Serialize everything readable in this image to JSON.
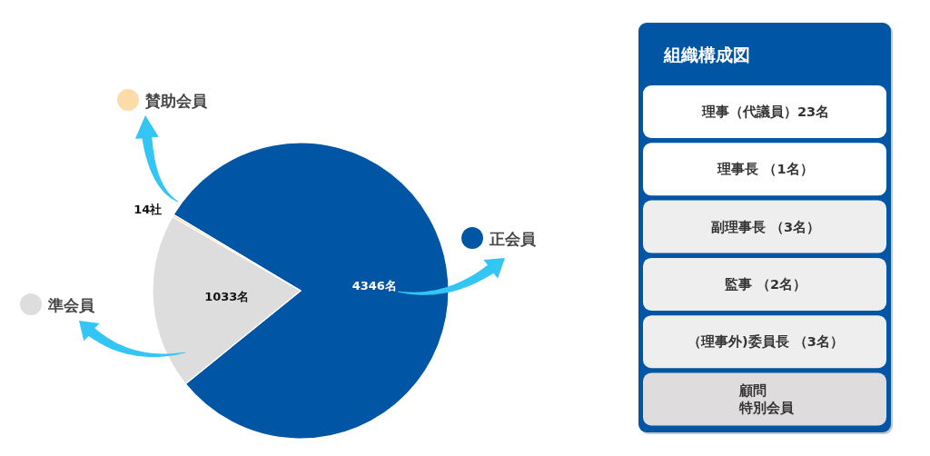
{
  "chart_data": [
    {
      "type": "pie",
      "categories": [
        "正会員",
        "準会員",
        "賛助会員"
      ],
      "values": [
        4346,
        1033,
        14
      ],
      "colors": [
        "#0055a5",
        "#dddddd",
        "#fddcaa"
      ],
      "value_labels": [
        "4346名",
        "1033名",
        "14社"
      ],
      "legend": "left"
    },
    {
      "type": "other",
      "title": "組織構成図",
      "color": "#0055a5",
      "categories": [
        "理事（代議員）23名",
        "理事長 （1名）",
        "副理事長 （3名）",
        "監事 （2名）",
        "（理事外)委員長 （3名）",
        [
          "顧問",
          "特別会員"
        ]
      ],
      "colors": [
        "#ffffff",
        "#ffffff",
        "#eeeeee",
        "#eeeeee",
        "#eeeeee",
        "#dedcdc"
      ]
    }
  ]
}
